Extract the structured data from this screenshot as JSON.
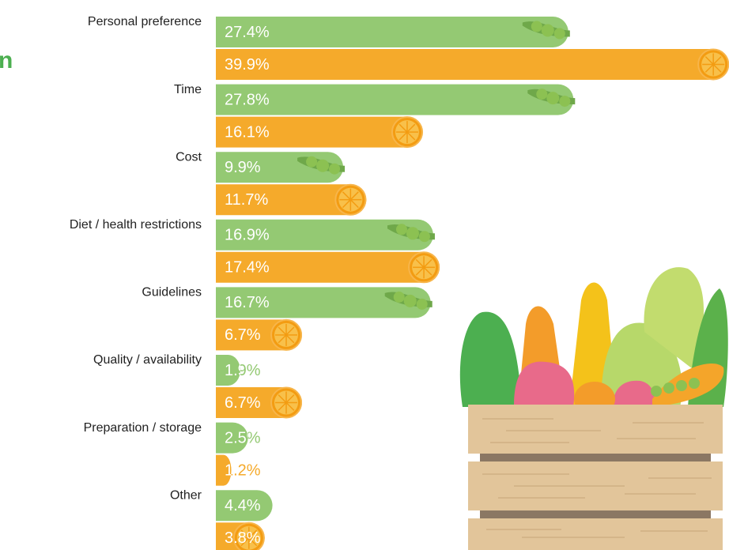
{
  "chart_data": {
    "type": "bar",
    "orientation": "horizontal",
    "title": "n",
    "categories": [
      "Personal preference",
      "Time",
      "Cost",
      "Diet / health restrictions",
      "Guidelines",
      "Quality / availability",
      "Preparation / storage",
      "Other"
    ],
    "series": [
      {
        "color": "#94c973",
        "values": [
          27.4,
          27.8,
          9.9,
          16.9,
          16.7,
          1.9,
          2.5,
          4.4
        ],
        "value_labels": [
          "27.4%",
          "27.8%",
          "9.9%",
          "16.9%",
          "16.7%",
          "1.9%",
          "2.5%",
          "4.4%"
        ]
      },
      {
        "color": "#f5aa2b",
        "values": [
          39.9,
          16.1,
          11.7,
          17.4,
          6.7,
          6.7,
          1.2,
          3.8
        ],
        "value_labels": [
          "39.9%",
          "16.1%",
          "11.7%",
          "17.4%",
          "6.7%",
          "6.7%",
          "1.2%",
          "3.8%"
        ]
      }
    ]
  }
}
